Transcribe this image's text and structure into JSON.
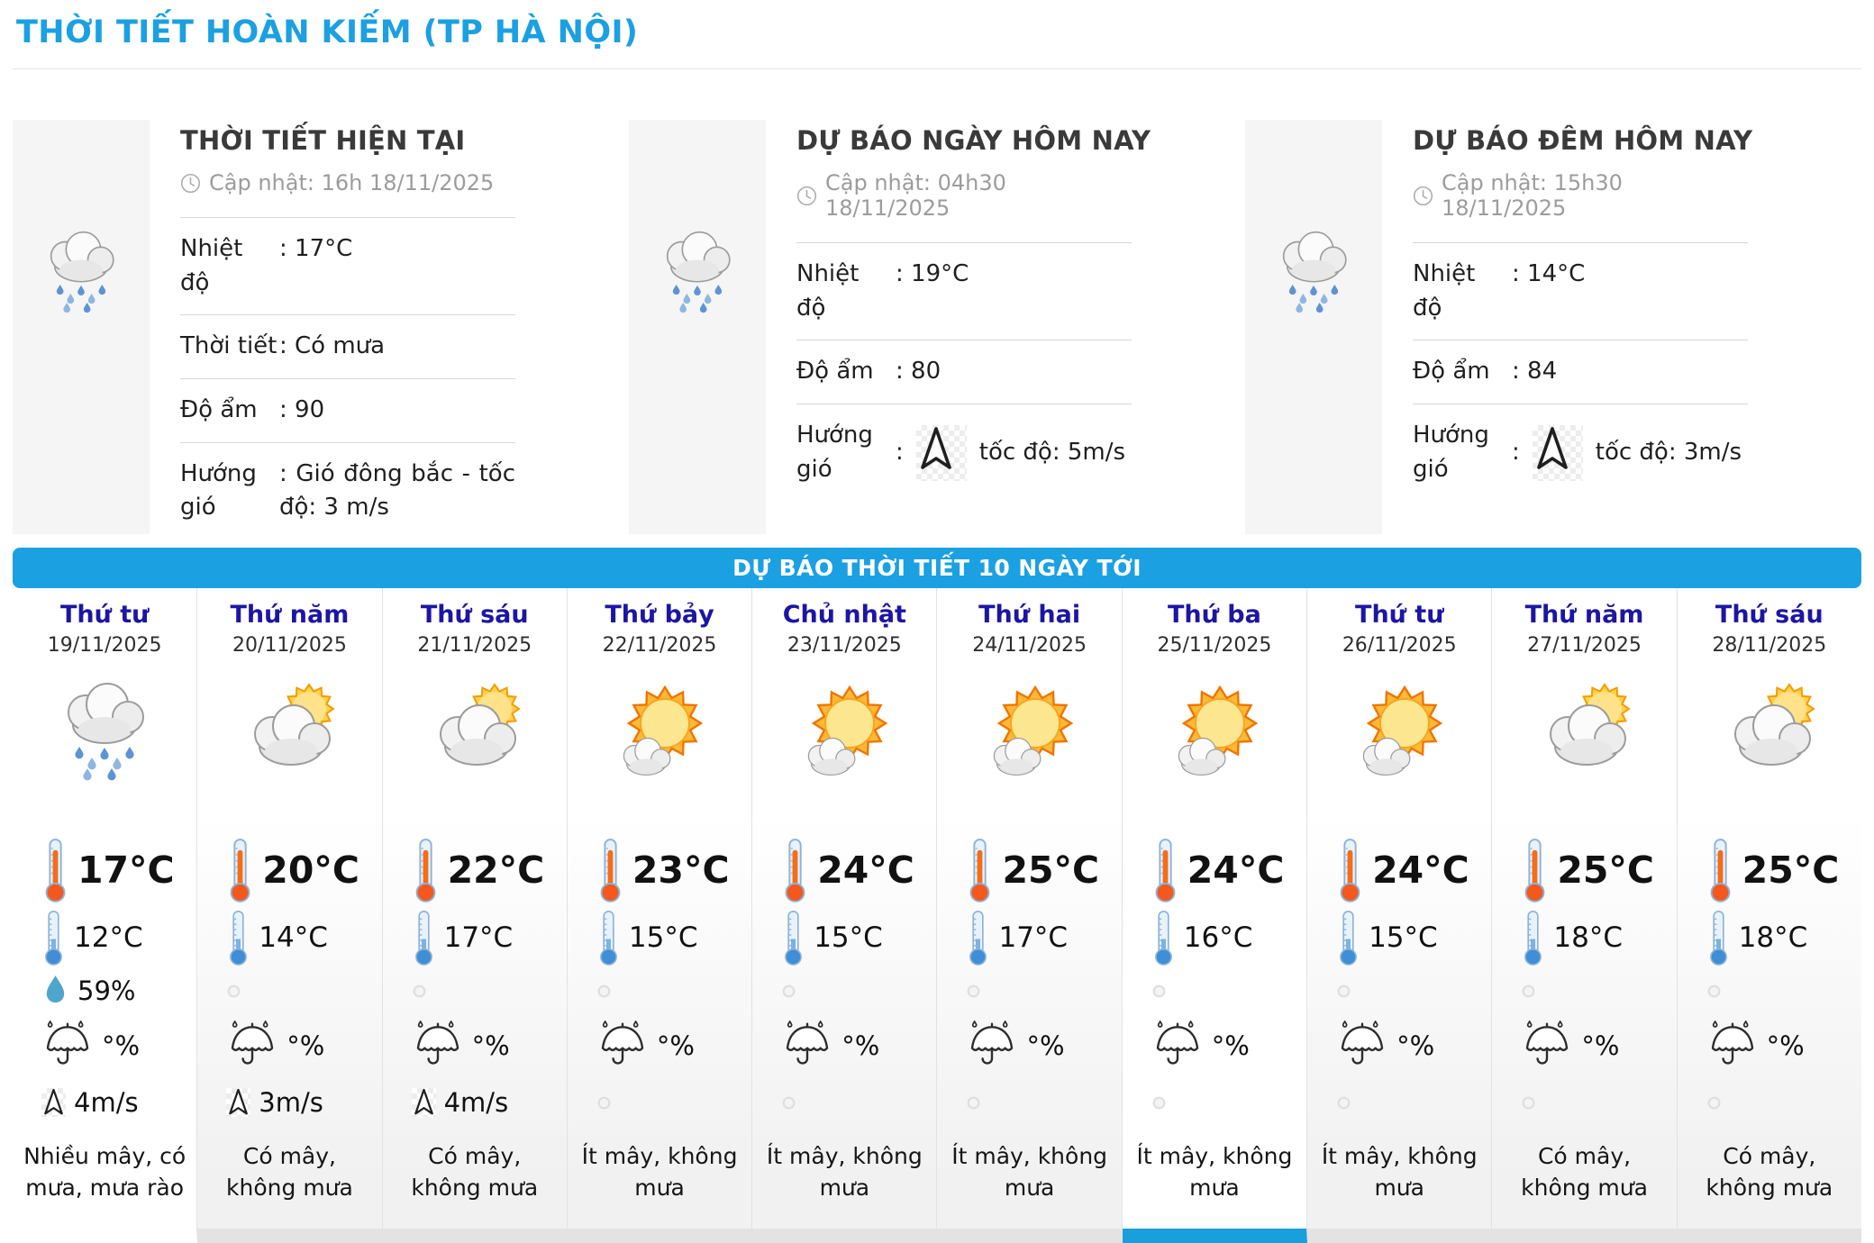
{
  "page": {
    "title": "THỜI TIẾT HOÀN KIẾM (TP HÀ NỘI)"
  },
  "colors": {
    "accent_blue": "#1ba0e2",
    "day_name_blue": "#1c16a2",
    "active_underline": "#199fdc"
  },
  "panels": [
    {
      "title": "THỜI TIẾT HIỆN TẠI",
      "updated": "Cập nhật: 16h 18/11/2025",
      "icon": "rain-cloud",
      "rows": [
        {
          "label": "Nhiệt độ",
          "value": ": 17°C"
        },
        {
          "label": "Thời tiết",
          "value": ": Có mưa"
        },
        {
          "label": "Độ ẩm",
          "value": ": 90"
        },
        {
          "label": "Hướng gió",
          "value": ": Gió đông bắc - tốc độ: 3 m/s"
        }
      ]
    },
    {
      "title": "DỰ BÁO NGÀY HÔM NAY",
      "updated": "Cập nhật: 04h30 18/11/2025",
      "icon": "rain-cloud",
      "rows": [
        {
          "label": "Nhiệt độ",
          "value": ": 19°C"
        },
        {
          "label": "Độ ẩm",
          "value": ": 80"
        },
        {
          "label": "Hướng gió",
          "value": ":",
          "wind_text": "tốc độ: 5m/s"
        }
      ]
    },
    {
      "title": "DỰ BÁO ĐÊM HÔM NAY",
      "updated": "Cập nhật: 15h30 18/11/2025",
      "icon": "rain-cloud",
      "rows": [
        {
          "label": "Nhiệt độ",
          "value": ": 14°C"
        },
        {
          "label": "Độ ẩm",
          "value": ": 84"
        },
        {
          "label": "Hướng gió",
          "value": ":",
          "wind_text": "tốc độ: 3m/s"
        }
      ]
    }
  ],
  "banner": {
    "label": "DỰ BÁO THỜI TIẾT 10 NGÀY TỚI"
  },
  "forecast": {
    "days": [
      {
        "day": "Thứ tư",
        "date": "19/11/2025",
        "icon": "rain",
        "high": "17°C",
        "low": "12°C",
        "humidity": "59%",
        "rain": "°%",
        "wind": "4m/s",
        "desc": "Nhiều mây, có mưa, mưa rào",
        "active": false
      },
      {
        "day": "Thứ năm",
        "date": "20/11/2025",
        "icon": "cloud-sun",
        "high": "20°C",
        "low": "14°C",
        "humidity": null,
        "rain": "°%",
        "wind": "3m/s",
        "desc": "Có mây, không mưa",
        "active": false
      },
      {
        "day": "Thứ sáu",
        "date": "21/11/2025",
        "icon": "cloud-sun",
        "high": "22°C",
        "low": "17°C",
        "humidity": null,
        "rain": "°%",
        "wind": "4m/s",
        "desc": "Có mây, không mưa",
        "active": false
      },
      {
        "day": "Thứ bảy",
        "date": "22/11/2025",
        "icon": "sun-cloud",
        "high": "23°C",
        "low": "15°C",
        "humidity": null,
        "rain": "°%",
        "wind": null,
        "desc": "Ít mây, không mưa",
        "active": false
      },
      {
        "day": "Chủ nhật",
        "date": "23/11/2025",
        "icon": "sun-cloud",
        "high": "24°C",
        "low": "15°C",
        "humidity": null,
        "rain": "°%",
        "wind": null,
        "desc": "Ít mây, không mưa",
        "active": false
      },
      {
        "day": "Thứ hai",
        "date": "24/11/2025",
        "icon": "sun-cloud",
        "high": "25°C",
        "low": "17°C",
        "humidity": null,
        "rain": "°%",
        "wind": null,
        "desc": "Ít mây, không mưa",
        "active": false
      },
      {
        "day": "Thứ ba",
        "date": "25/11/2025",
        "icon": "sun-cloud",
        "high": "24°C",
        "low": "16°C",
        "humidity": null,
        "rain": "°%",
        "wind": null,
        "desc": "Ít mây, không mưa",
        "active": true
      },
      {
        "day": "Thứ tư",
        "date": "26/11/2025",
        "icon": "sun-cloud",
        "high": "24°C",
        "low": "15°C",
        "humidity": null,
        "rain": "°%",
        "wind": null,
        "desc": "Ít mây, không mưa",
        "active": false
      },
      {
        "day": "Thứ năm",
        "date": "27/11/2025",
        "icon": "cloud-sun",
        "high": "25°C",
        "low": "18°C",
        "humidity": null,
        "rain": "°%",
        "wind": null,
        "desc": "Có mây, không mưa",
        "active": false
      },
      {
        "day": "Thứ sáu",
        "date": "28/11/2025",
        "icon": "cloud-sun",
        "high": "25°C",
        "low": "18°C",
        "humidity": null,
        "rain": "°%",
        "wind": null,
        "desc": "Có mây, không mưa",
        "active": false
      }
    ]
  }
}
